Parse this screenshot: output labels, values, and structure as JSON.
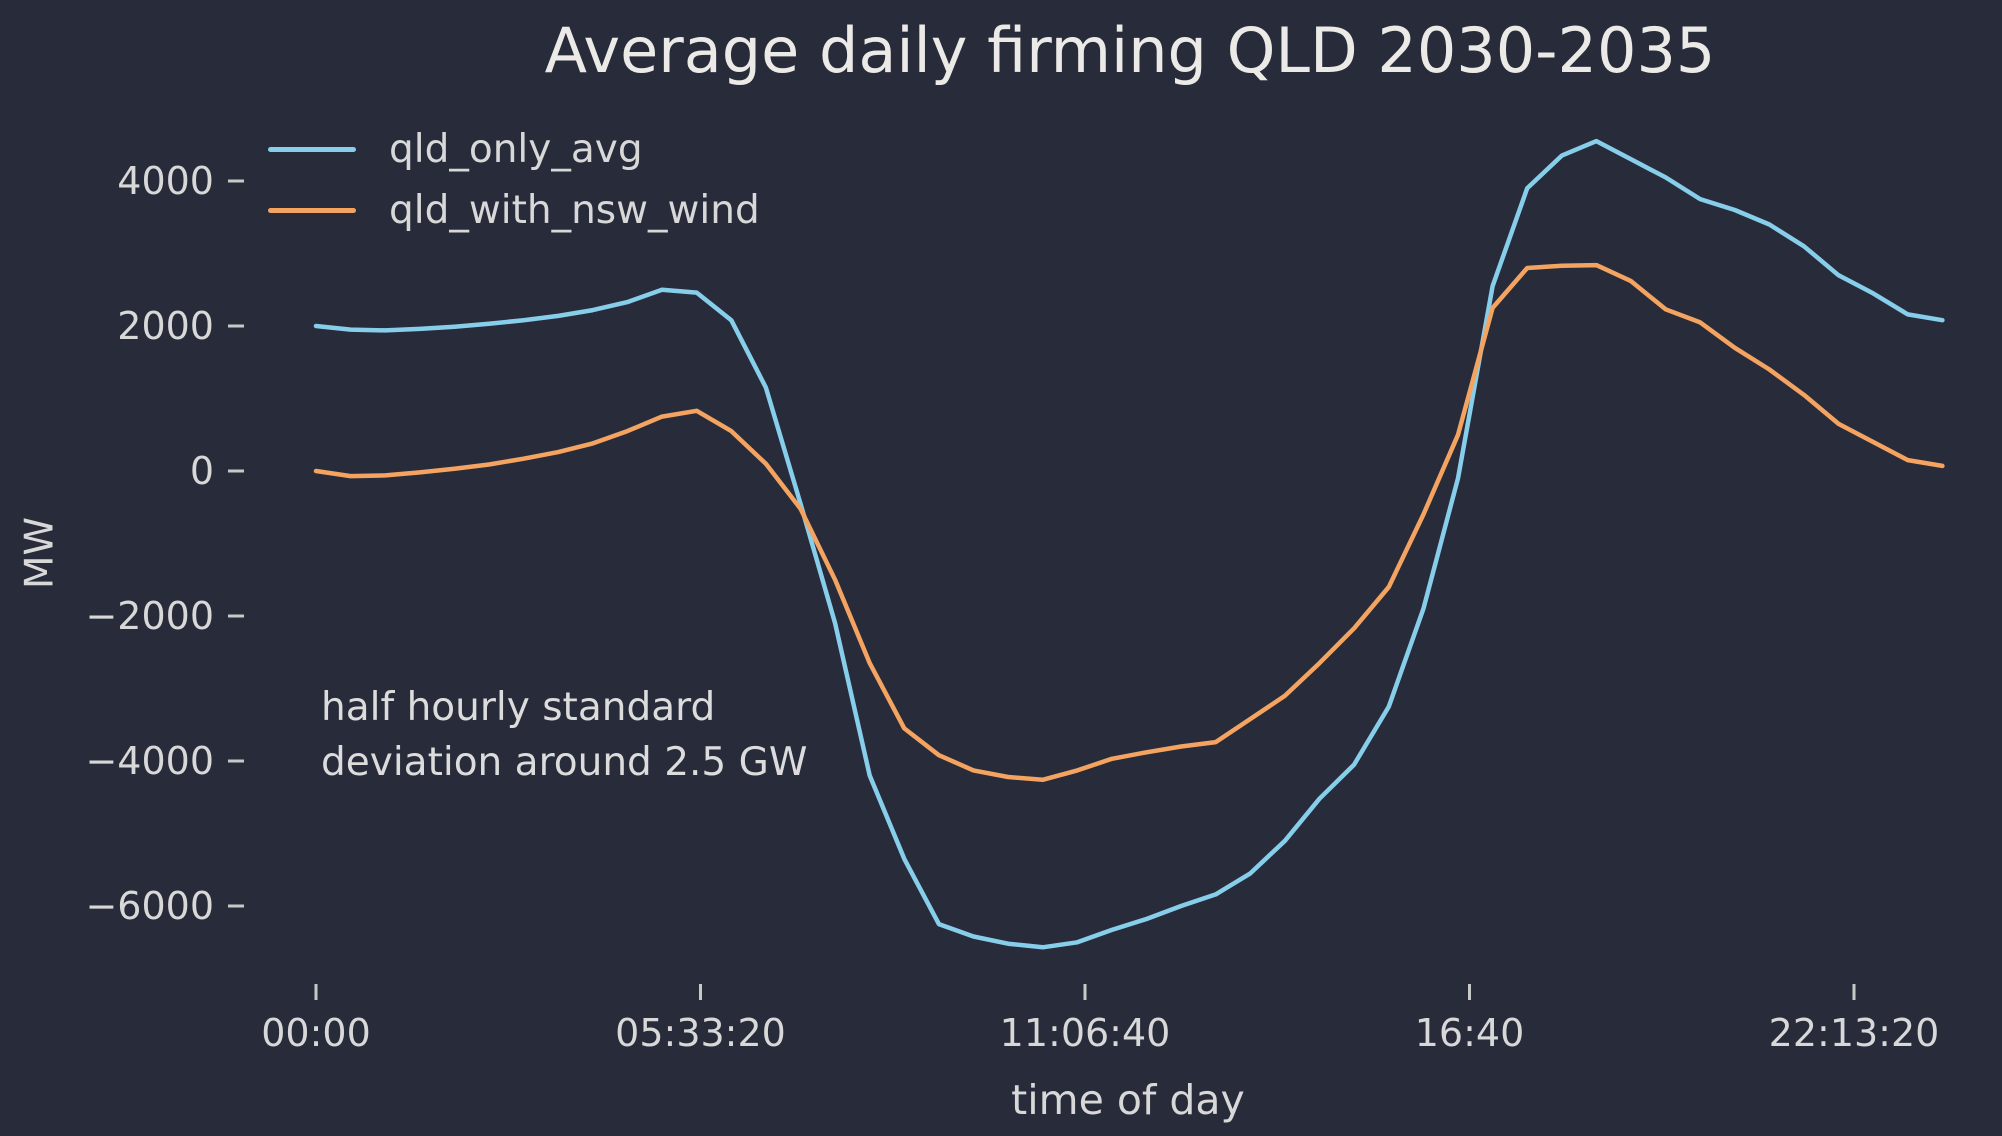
{
  "figure": {
    "background": "#272b3a",
    "text_color": "#d8d8d8",
    "title_color": "#eceae7",
    "tick_color": "#c8c8c8"
  },
  "chart_data": {
    "type": "line",
    "title": "Average daily firming QLD 2030-2035",
    "xlabel": "time of day",
    "ylabel": "MW",
    "grid": false,
    "legend_position": "upper left",
    "x_unit": "seconds of day (half-hourly samples)",
    "xlim_seconds": [
      0,
      84600
    ],
    "ylim": [
      -7000,
      5100
    ],
    "x": [
      0,
      1800,
      3600,
      5400,
      7200,
      9000,
      10800,
      12600,
      14400,
      16200,
      18000,
      19800,
      21600,
      23400,
      25200,
      27000,
      28800,
      30600,
      32400,
      34200,
      36000,
      37800,
      39600,
      41400,
      43200,
      45000,
      46800,
      48600,
      50400,
      52200,
      54000,
      55800,
      57600,
      59400,
      61200,
      63000,
      64800,
      66600,
      68400,
      70200,
      72000,
      73800,
      75600,
      77400,
      79200,
      81000,
      82800,
      84600
    ],
    "series": [
      {
        "name": "qld_only_avg",
        "color": "#87CEEB",
        "values": [
          2000,
          1950,
          1940,
          1960,
          1990,
          2030,
          2080,
          2140,
          2220,
          2330,
          2500,
          2460,
          2080,
          1150,
          -450,
          -2100,
          -4200,
          -5350,
          -6250,
          -6420,
          -6520,
          -6570,
          -6500,
          -6330,
          -6180,
          -6000,
          -5840,
          -5550,
          -5100,
          -4520,
          -4050,
          -3250,
          -1900,
          -100,
          2550,
          3900,
          4350,
          4550,
          4300,
          4050,
          3750,
          3600,
          3400,
          3100,
          2700,
          2450,
          2160,
          2080
        ]
      },
      {
        "name": "qld_with_nsw_wind",
        "color": "#F4A460",
        "values": [
          0,
          -70,
          -60,
          -20,
          30,
          90,
          170,
          260,
          380,
          550,
          750,
          830,
          550,
          100,
          -520,
          -1500,
          -2650,
          -3550,
          -3920,
          -4130,
          -4220,
          -4260,
          -4130,
          -3970,
          -3880,
          -3800,
          -3740,
          -3420,
          -3100,
          -2650,
          -2170,
          -1600,
          -600,
          500,
          2250,
          2800,
          2830,
          2840,
          2620,
          2230,
          2050,
          1700,
          1400,
          1050,
          650,
          400,
          150,
          70
        ]
      }
    ],
    "x_ticks": [
      {
        "t": 0,
        "label": "00:00"
      },
      {
        "t": 20000,
        "label": "05:33:20"
      },
      {
        "t": 40000,
        "label": "11:06:40"
      },
      {
        "t": 60000,
        "label": "16:40"
      },
      {
        "t": 80000,
        "label": "22:13:20"
      }
    ],
    "y_ticks": [
      {
        "value": 4000,
        "label": "4000"
      },
      {
        "value": 2000,
        "label": "2000"
      },
      {
        "value": 0,
        "label": "0"
      },
      {
        "value": -2000,
        "label": "−2000"
      },
      {
        "value": -4000,
        "label": "−4000"
      },
      {
        "value": -6000,
        "label": "−6000"
      }
    ],
    "annotation": {
      "lines": [
        "half hourly standard",
        "deviation around 2.5 GW"
      ]
    }
  }
}
